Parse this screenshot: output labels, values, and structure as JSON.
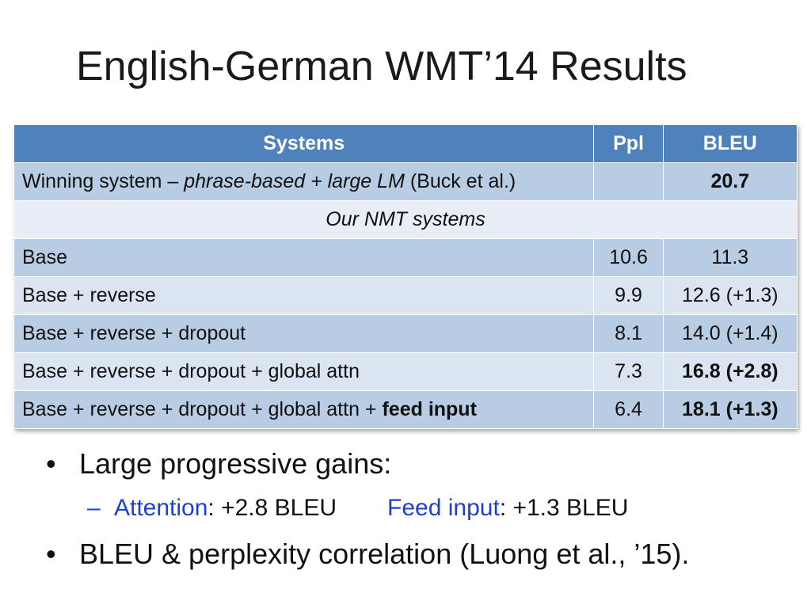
{
  "slide": {
    "title": "English-German WMT’14 Results"
  },
  "table": {
    "headers": {
      "systems": "Systems",
      "ppl": "Ppl",
      "bleu": "BLEU"
    },
    "winning": {
      "prefix": "Winning system – ",
      "italic": "phrase-based + large LM",
      "suffix": " (Buck et al.)",
      "ppl": "",
      "bleu": "20.7"
    },
    "subheader": "Our NMT systems",
    "rows": [
      {
        "system": "Base",
        "ppl": "10.6",
        "bleu": "11.3"
      },
      {
        "system": "Base + reverse",
        "ppl": "9.9",
        "bleu": "12.6 (+1.3)"
      },
      {
        "system": "Base + reverse + dropout",
        "ppl": "8.1",
        "bleu": "14.0 (+1.4)"
      },
      {
        "system": "Base + reverse + dropout + global attn",
        "ppl": "7.3",
        "bleu": "16.8 (+2.8)"
      }
    ],
    "last_row": {
      "system_prefix": "Base + reverse + dropout + global attn + ",
      "system_bold": "feed input",
      "ppl": "6.4",
      "bleu": "18.1 (+1.3)"
    }
  },
  "bullets": {
    "b1": {
      "bullet": "•",
      "text": "Large progressive gains:"
    },
    "b1_sub": {
      "dash": "–",
      "attn_label": "Attention",
      "attn_value": ": +2.8 BLEU",
      "feed_label": "Feed input",
      "feed_value": ": +1.3 BLEU"
    },
    "b2": {
      "bullet": "•",
      "text": "BLEU & perplexity correlation (Luong et al., ’15)."
    }
  }
}
